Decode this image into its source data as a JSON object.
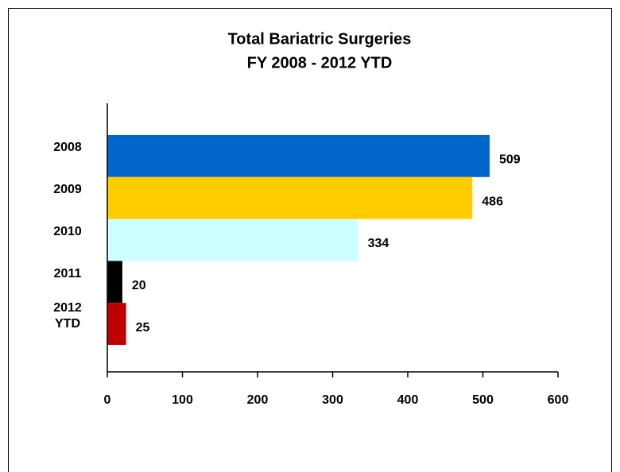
{
  "chart_data": {
    "type": "barh",
    "title": "Total Bariatric Surgeries",
    "subtitle": "FY 2008 - 2012 YTD",
    "categories": [
      "2008",
      "2009",
      "2010",
      "2011",
      "2012 YTD"
    ],
    "values": [
      509,
      486,
      334,
      20,
      25
    ],
    "colors": [
      "#0066cc",
      "#ffcc00",
      "#ccffff",
      "#000000",
      "#c00000"
    ],
    "xlim": [
      0,
      600
    ],
    "xticks": [
      0,
      100,
      200,
      300,
      400,
      500,
      600
    ]
  }
}
